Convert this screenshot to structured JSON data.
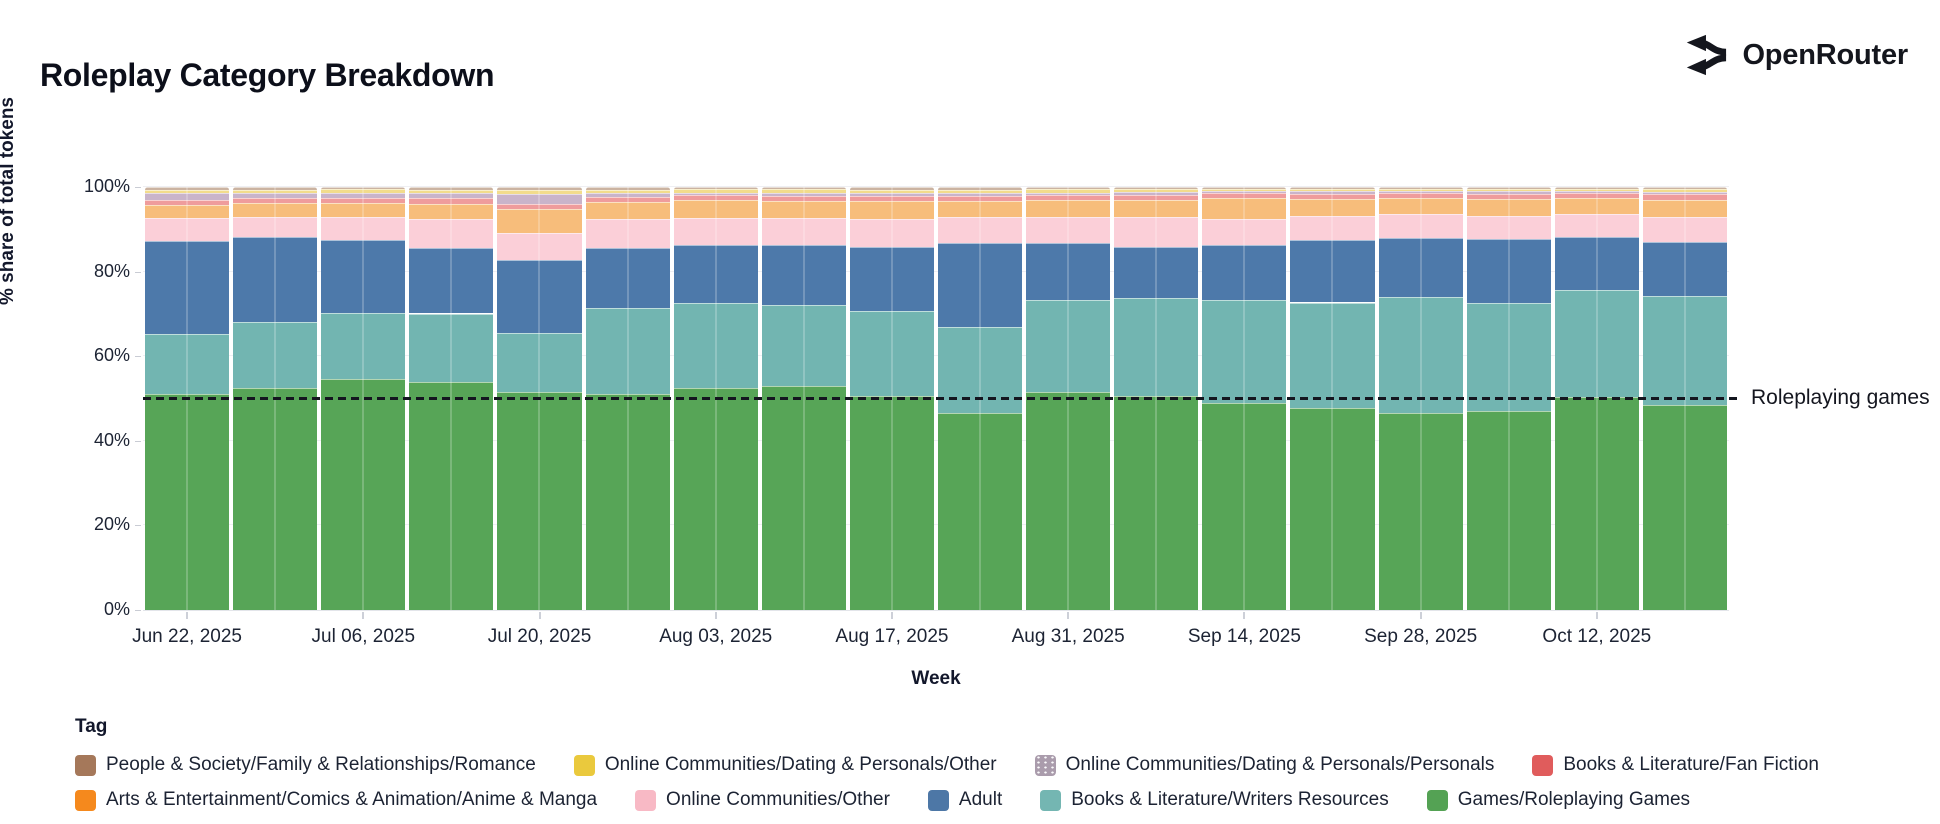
{
  "header": {
    "title": "Roleplay Category Breakdown",
    "brand": "OpenRouter"
  },
  "chart_data": {
    "type": "bar",
    "stacked": true,
    "normalized": "percent",
    "title": "Roleplay Category Breakdown",
    "xlabel": "Week",
    "ylabel": "% share of total tokens",
    "ylim": [
      0,
      100
    ],
    "y_ticks": [
      "0%",
      "20%",
      "40%",
      "60%",
      "80%",
      "100%"
    ],
    "grid": "horizontal-faint",
    "legend_title": "Tag",
    "legend_position": "bottom",
    "categories": [
      "Jun 22, 2025",
      "",
      "Jul 06, 2025",
      "",
      "Jul 20, 2025",
      "",
      "Aug 03, 2025",
      "",
      "Aug 17, 2025",
      "",
      "Aug 31, 2025",
      "",
      "Sep 14, 2025",
      "",
      "Sep 28, 2025",
      "",
      "Oct 12, 2025",
      ""
    ],
    "annotation": {
      "label": "Roleplaying games",
      "y": 50,
      "style": "black-dashed-horizontal-line"
    },
    "series": [
      {
        "key": "roleplaying_games",
        "name": "Games/Roleplaying Games",
        "fill": "#57a557",
        "legend_color": "#54a254",
        "values": [
          51.0,
          52.5,
          54.5,
          54.0,
          51.5,
          51.0,
          52.5,
          53.0,
          50.5,
          46.5,
          51.5,
          50.5,
          49.0,
          47.8,
          46.5,
          47.0,
          50.3,
          48.5
        ]
      },
      {
        "key": "writers_resources",
        "name": "Books & Literature/Writers Resources",
        "fill": "#72b5b1",
        "legend_color": "#74b6b2",
        "values": [
          14.2,
          15.5,
          15.8,
          16.1,
          14.0,
          20.5,
          20.0,
          19.1,
          20.1,
          20.4,
          21.8,
          23.2,
          24.2,
          24.9,
          27.6,
          25.6,
          25.3,
          25.7
        ]
      },
      {
        "key": "adult",
        "name": "Adult",
        "fill": "#4d79aa",
        "legend_color": "#4d77a6",
        "values": [
          22.1,
          20.3,
          17.2,
          15.4,
          17.2,
          14.1,
          13.7,
          14.1,
          15.3,
          19.9,
          13.4,
          12.2,
          13.0,
          14.8,
          13.8,
          15.1,
          12.5,
          12.7
        ]
      },
      {
        "key": "online_communities_other",
        "name": "Online Communities/Other",
        "fill": "#fbcfd8",
        "legend_color": "#f8b9c5",
        "values": [
          5.4,
          4.7,
          5.5,
          7.0,
          6.4,
          6.9,
          6.4,
          6.4,
          6.5,
          6.0,
          6.2,
          7.1,
          6.3,
          5.7,
          5.7,
          5.4,
          5.6,
          6.0
        ]
      },
      {
        "key": "anime_manga",
        "name": "Arts & Entertainment/Comics & Animation/Anime & Manga",
        "fill": "#f7bd7b",
        "legend_color": "#f5891d",
        "values": [
          3.0,
          3.2,
          3.3,
          3.5,
          5.7,
          4.0,
          4.3,
          4.2,
          4.2,
          4.0,
          4.0,
          4.0,
          4.8,
          4.0,
          3.8,
          4.1,
          3.8,
          4.0
        ]
      },
      {
        "key": "fan_fiction",
        "name": "Books & Literature/Fan Fiction",
        "fill": "#ef9c9c",
        "legend_color": "#e05c5c",
        "values": [
          1.2,
          1.2,
          1.1,
          1.3,
          1.1,
          1.1,
          1.1,
          1.1,
          1.3,
          1.1,
          1.1,
          1.2,
          1.2,
          1.2,
          1.2,
          1.2,
          1.1,
          1.4
        ]
      },
      {
        "key": "dating_personals",
        "name": "Online Communities/Dating & Personals/Personals",
        "fill": "#c9b4ca",
        "legend_color": "#aa9cac",
        "pattern": "dots",
        "values": [
          1.8,
          1.2,
          1.2,
          1.2,
          2.4,
          1.0,
          0.7,
          0.7,
          0.7,
          0.6,
          0.7,
          0.7,
          0.5,
          0.6,
          0.5,
          0.6,
          0.5,
          0.6
        ]
      },
      {
        "key": "dating_other",
        "name": "Online Communities/Dating & Personals/Other",
        "fill": "#f2dc8c",
        "legend_color": "#eac93d",
        "values": [
          0.7,
          0.8,
          0.9,
          0.9,
          1.0,
          0.8,
          0.8,
          0.9,
          0.8,
          0.8,
          0.8,
          0.6,
          0.6,
          0.5,
          0.5,
          0.5,
          0.5,
          0.6
        ]
      },
      {
        "key": "romance",
        "name": "People & Society/Family & Relationships/Romance",
        "fill": "#cbb3a1",
        "legend_color": "#a5785a",
        "values": [
          0.6,
          0.6,
          0.5,
          0.6,
          0.7,
          0.6,
          0.5,
          0.5,
          0.6,
          0.7,
          0.5,
          0.5,
          0.4,
          0.5,
          0.4,
          0.5,
          0.4,
          0.5
        ]
      }
    ],
    "legend_rows": [
      [
        "romance",
        "dating_other",
        "dating_personals",
        "fan_fiction"
      ],
      [
        "anime_manga",
        "online_communities_other",
        "adult",
        "writers_resources",
        "roleplaying_games"
      ]
    ]
  }
}
